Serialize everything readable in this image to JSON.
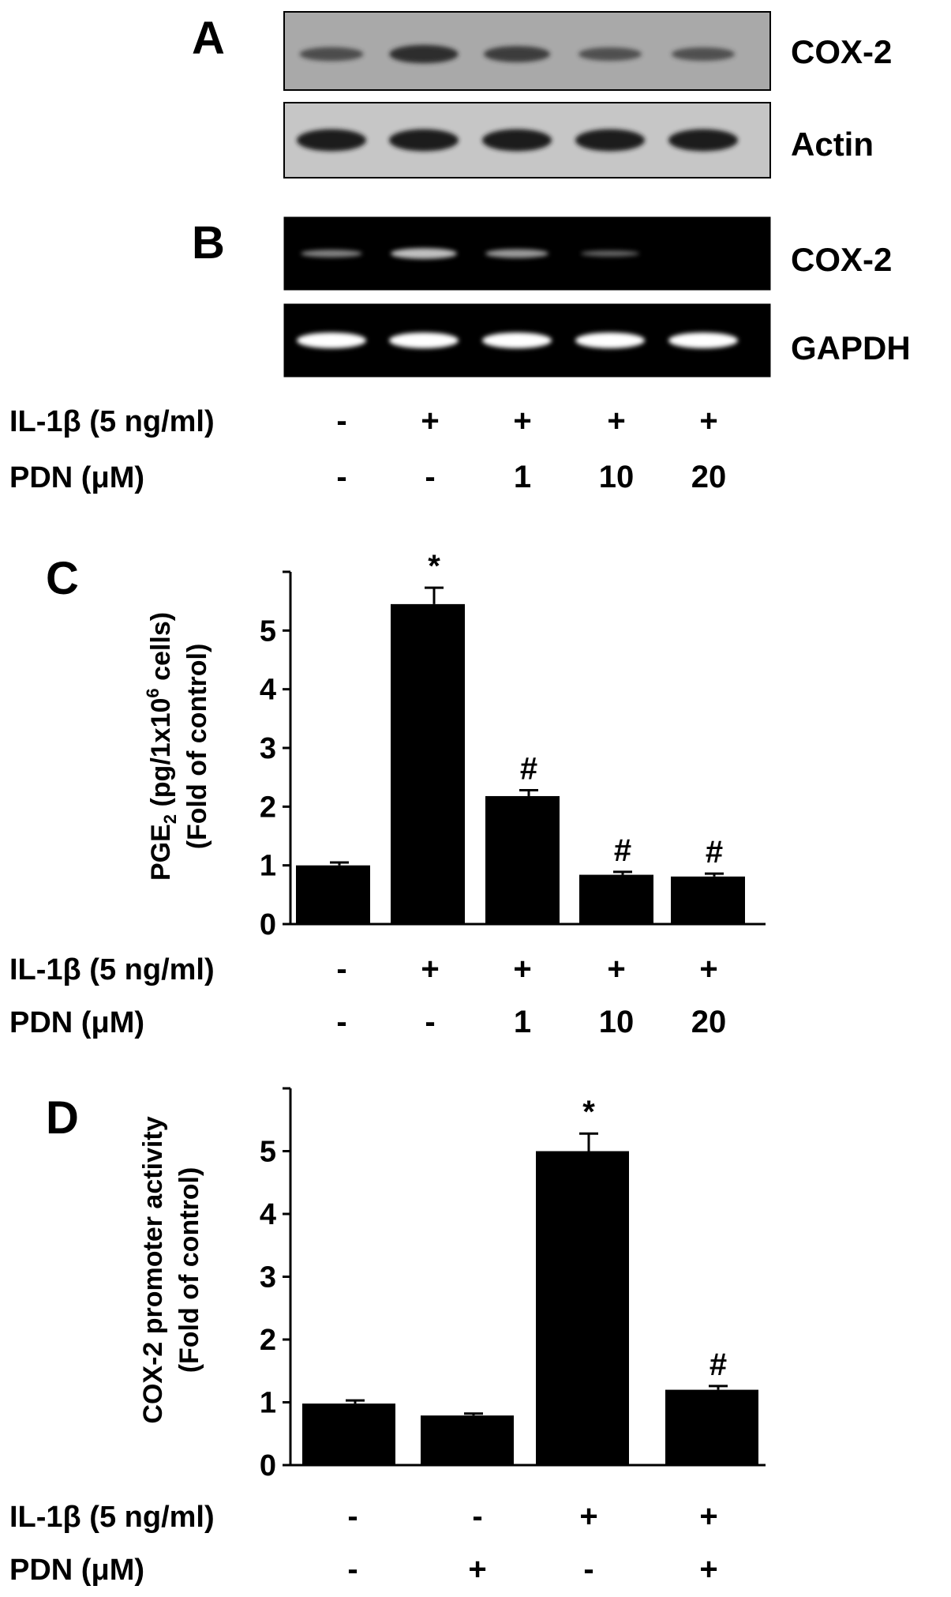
{
  "blots": [
    {
      "panel": "A",
      "rows": [
        {
          "label": "COX-2",
          "style": "western",
          "background": "#a9a9a9",
          "band_color": "#2a2a2a",
          "intensities": [
            0.55,
            0.95,
            0.75,
            0.5,
            0.5
          ]
        },
        {
          "label": "Actin",
          "style": "western",
          "background": "#c6c6c6",
          "band_color": "#1a1a1a",
          "intensities": [
            1,
            1,
            1,
            1,
            1
          ]
        }
      ]
    },
    {
      "panel": "B",
      "rows": [
        {
          "label": "COX-2",
          "style": "gel",
          "background": "#000000",
          "band_color": "#e6e6e6",
          "intensities": [
            0.35,
            0.75,
            0.5,
            0.15,
            0
          ]
        },
        {
          "label": "GAPDH",
          "style": "gel",
          "background": "#000000",
          "band_color": "#ffffff",
          "intensities": [
            1,
            1,
            1,
            1,
            1
          ]
        }
      ]
    }
  ],
  "conditions": {
    "AB": {
      "il1b_label": "IL-1β (5 ng/ml)",
      "il1b": [
        "-",
        "+",
        "+",
        "+",
        "+"
      ],
      "pdn_label": "PDN (μM)",
      "pdn": [
        "-",
        "-",
        "1",
        "10",
        "20"
      ]
    },
    "C": {
      "il1b_label": "IL-1β (5 ng/ml)",
      "il1b": [
        "-",
        "+",
        "+",
        "+",
        "+"
      ],
      "pdn_label": "PDN (μM)",
      "pdn": [
        "-",
        "-",
        "1",
        "10",
        "20"
      ]
    },
    "D": {
      "il1b_label": "IL-1β (5 ng/ml)",
      "il1b": [
        "-",
        "-",
        "+",
        "+"
      ],
      "pdn_label": "PDN (μM)",
      "pdn": [
        "-",
        "+",
        "-",
        "+"
      ]
    }
  },
  "chart_data": [
    {
      "panel": "C",
      "type": "bar",
      "ylabel_line1": "PGE",
      "ylabel_sub": "2",
      "ylabel_mid": " (pg/1x10",
      "ylabel_sup": "6",
      "ylabel_end": " cells)",
      "ylabel_line2": "(Fold of control)",
      "ylim": [
        0,
        6
      ],
      "yticks": [
        0,
        1,
        2,
        3,
        4,
        5
      ],
      "values": [
        1.0,
        5.45,
        2.18,
        0.84,
        0.81
      ],
      "errors": [
        0.05,
        0.28,
        0.1,
        0.05,
        0.05
      ],
      "annotations": [
        "",
        "*",
        "#",
        "#",
        "#"
      ],
      "bar_color": "#000000"
    },
    {
      "panel": "D",
      "type": "bar",
      "ylabel_line1": "COX-2 promoter activity",
      "ylabel_line2": "(Fold of control)",
      "ylim": [
        0,
        6
      ],
      "yticks": [
        0,
        1,
        2,
        3,
        4,
        5
      ],
      "values": [
        0.98,
        0.79,
        5.0,
        1.2
      ],
      "errors": [
        0.05,
        0.03,
        0.28,
        0.06
      ],
      "annotations": [
        "",
        "",
        "*",
        "#"
      ],
      "bar_color": "#000000"
    }
  ]
}
